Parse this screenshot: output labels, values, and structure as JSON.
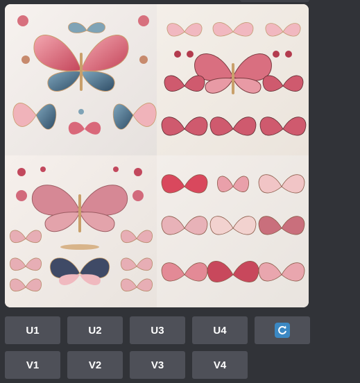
{
  "buttons": {
    "upscale": [
      {
        "label": "U1"
      },
      {
        "label": "U2"
      },
      {
        "label": "U3"
      },
      {
        "label": "U4"
      }
    ],
    "variation": [
      {
        "label": "V1"
      },
      {
        "label": "V2"
      },
      {
        "label": "V3"
      },
      {
        "label": "V4"
      }
    ],
    "reroll_icon": "refresh-icon"
  },
  "colors": {
    "background": "#313338",
    "button": "#4e5058",
    "button_text": "#ffffff",
    "refresh_accent": "#3b88c3"
  }
}
